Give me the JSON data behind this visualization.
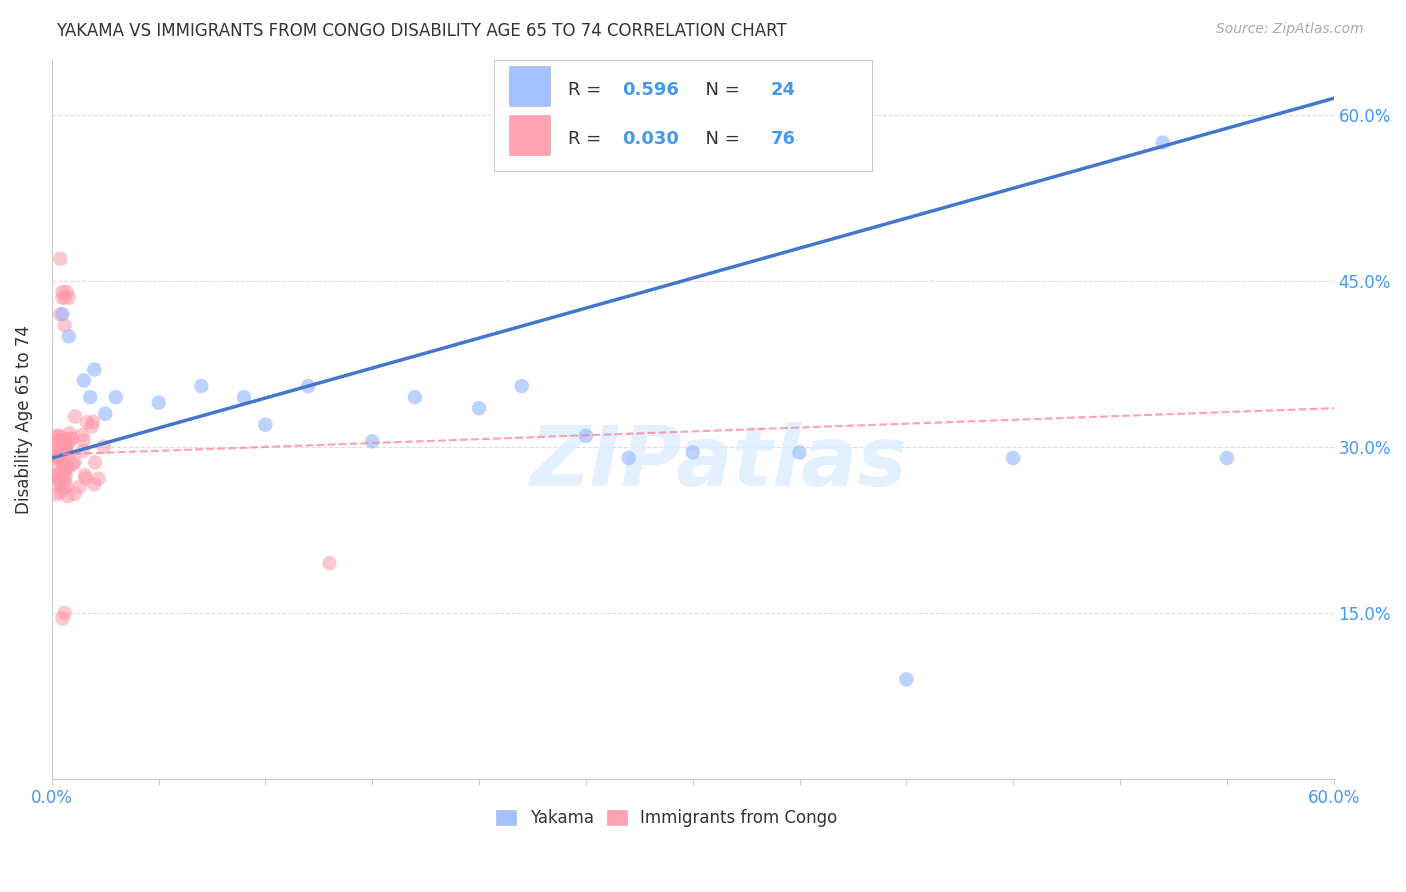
{
  "title": "YAKAMA VS IMMIGRANTS FROM CONGO DISABILITY AGE 65 TO 74 CORRELATION CHART",
  "source": "Source: ZipAtlas.com",
  "ylabel": "Disability Age 65 to 74",
  "xmin": 0.0,
  "xmax": 0.6,
  "ymin": 0.0,
  "ymax": 0.65,
  "yticks": [
    0.0,
    0.15,
    0.3,
    0.45,
    0.6
  ],
  "ytick_labels": [
    "",
    "15.0%",
    "30.0%",
    "45.0%",
    "60.0%"
  ],
  "xtick_left_label": "0.0%",
  "xtick_right_label": "60.0%",
  "legend_labels": [
    "Yakama",
    "Immigrants from Congo"
  ],
  "blue_color": "#99BBFF",
  "pink_color": "#FF99AA",
  "blue_line_color": "#4477CC",
  "pink_line_color": "#FF8899",
  "watermark": "ZIPatlas",
  "yakama_R": "0.596",
  "yakama_N": "24",
  "congo_R": "0.030",
  "congo_N": "76",
  "yakama_points_x": [
    0.005,
    0.008,
    0.015,
    0.018,
    0.02,
    0.025,
    0.03,
    0.05,
    0.07,
    0.09,
    0.1,
    0.12,
    0.15,
    0.17,
    0.2,
    0.22,
    0.25,
    0.27,
    0.3,
    0.35,
    0.4,
    0.45,
    0.52,
    0.55
  ],
  "yakama_points_y": [
    0.42,
    0.4,
    0.36,
    0.345,
    0.37,
    0.33,
    0.345,
    0.34,
    0.355,
    0.345,
    0.32,
    0.355,
    0.305,
    0.345,
    0.335,
    0.355,
    0.31,
    0.29,
    0.295,
    0.295,
    0.09,
    0.29,
    0.575,
    0.29
  ],
  "blue_line_x0": 0.0,
  "blue_line_y0": 0.29,
  "blue_line_x1": 0.6,
  "blue_line_y1": 0.615,
  "pink_line_x0": 0.0,
  "pink_line_y0": 0.293,
  "pink_line_x1": 0.6,
  "pink_line_y1": 0.335
}
